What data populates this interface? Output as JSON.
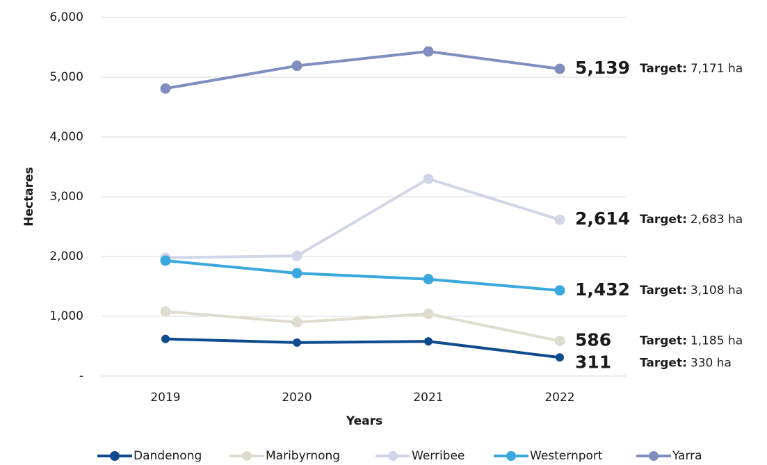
{
  "chart_data": {
    "type": "line",
    "x_label": "Years",
    "y_label": "Hectares",
    "categories": [
      "2019",
      "2020",
      "2021",
      "2022"
    ],
    "ylim": [
      0,
      6000
    ],
    "yticks": [
      {
        "value": 0,
        "label": "-"
      },
      {
        "value": 1000,
        "label": "1,000"
      },
      {
        "value": 2000,
        "label": "2,000"
      },
      {
        "value": 3000,
        "label": "3,000"
      },
      {
        "value": 4000,
        "label": "4,000"
      },
      {
        "value": 5000,
        "label": "5,000"
      },
      {
        "value": 6000,
        "label": "6,000"
      }
    ],
    "grid": true,
    "legend": "bottom",
    "series": [
      {
        "name": "Dandenong",
        "color": "#0e4a8e",
        "values": [
          620,
          560,
          580,
          311
        ],
        "value_labels": [
          null,
          null,
          null,
          "311"
        ],
        "target": {
          "label": "Target:",
          "text": "330 ha"
        }
      },
      {
        "name": "Maribyrnong",
        "color": "#dedbcf",
        "values": [
          1080,
          900,
          1040,
          586
        ],
        "value_labels": [
          null,
          null,
          null,
          "586"
        ],
        "target": {
          "label": "Target:",
          "text": "1,185 ha"
        }
      },
      {
        "name": "Werribee",
        "color": "#d1d5e8",
        "values": [
          1980,
          2010,
          3300,
          2614
        ],
        "value_labels": [
          null,
          null,
          null,
          "2,614"
        ],
        "target": {
          "label": "Target:",
          "text": "2,683 ha"
        }
      },
      {
        "name": "Westernport",
        "color": "#3aa8dc",
        "values": [
          1930,
          1720,
          1620,
          1432
        ],
        "value_labels": [
          null,
          null,
          null,
          "1,432"
        ],
        "target": {
          "label": "Target:",
          "text": "3,108 ha"
        }
      },
      {
        "name": "Yarra",
        "color": "#7f8dbf",
        "values": [
          4810,
          5190,
          5430,
          5139
        ],
        "value_labels": [
          null,
          null,
          null,
          "5,139"
        ],
        "target": {
          "label": "Target:",
          "text": "7,171 ha"
        }
      }
    ]
  }
}
